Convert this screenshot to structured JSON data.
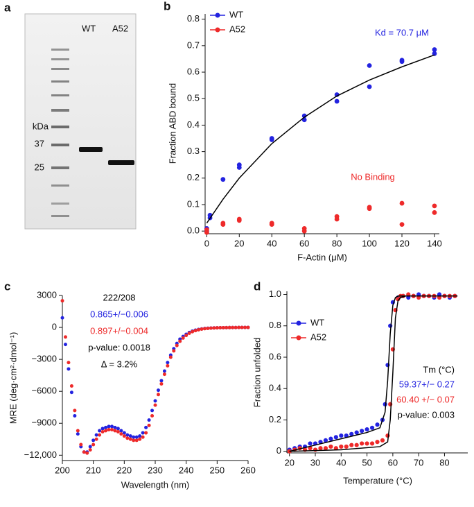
{
  "panel_labels": [
    "a",
    "b",
    "c",
    "d"
  ],
  "gel": {
    "lanes": [
      "WT",
      "A52"
    ],
    "unit": "kDa",
    "markers": [
      "37",
      "25"
    ]
  },
  "chart_data": [
    {
      "type": "scatter",
      "xlabel": "F-Actin (μM)",
      "ylabel": "Fraction ABD bound",
      "xlim": [
        -1,
        143
      ],
      "ylim": [
        -0.01,
        0.82
      ],
      "xticks": [
        0,
        20,
        40,
        60,
        80,
        100,
        120,
        140
      ],
      "yticks": [
        {
          "value": 0,
          "label": "0.0"
        },
        0.1,
        0.2,
        0.3,
        0.4,
        0.5,
        0.6,
        0.7,
        0.8
      ],
      "legend": "upper left",
      "series": [
        {
          "name": "WT",
          "color": "#2323e0",
          "x": [
            0,
            0,
            2,
            2,
            10,
            20,
            20,
            40,
            40,
            60,
            60,
            80,
            80,
            100,
            100,
            120,
            120,
            140,
            140
          ],
          "values": [
            0.0,
            0.01,
            0.05,
            0.06,
            0.195,
            0.24,
            0.25,
            0.345,
            0.35,
            0.42,
            0.435,
            0.49,
            0.515,
            0.545,
            0.625,
            0.64,
            0.645,
            0.67,
            0.685
          ]
        },
        {
          "name": "A52",
          "color": "#ee2a2a",
          "x": [
            0,
            0,
            10,
            10,
            20,
            20,
            40,
            40,
            60,
            60,
            80,
            80,
            100,
            100,
            120,
            120,
            140,
            140
          ],
          "values": [
            0.005,
            -0.005,
            0.03,
            0.025,
            0.045,
            0.04,
            0.03,
            0.025,
            0.01,
            0.0,
            0.055,
            0.045,
            0.085,
            0.09,
            0.105,
            0.025,
            0.095,
            0.07
          ]
        },
        {
          "color": "#000000",
          "fit": true,
          "x": [
            0,
            10,
            20,
            40,
            60,
            80,
            100,
            120,
            140
          ],
          "values": [
            0.03,
            0.12,
            0.2,
            0.33,
            0.43,
            0.51,
            0.57,
            0.62,
            0.665
          ]
        }
      ],
      "annotations": [
        {
          "text": "Kd = 70.7 μM",
          "color": "#2323e0"
        },
        {
          "text": "No Binding",
          "color": "#ee2a2a"
        }
      ]
    },
    {
      "type": "scatter",
      "xlabel": "Wavelength (nm)",
      "ylabel": "MRE (deg·cm²·dmol⁻¹)",
      "xlim": [
        200,
        260
      ],
      "ylim": [
        -12500,
        3000
      ],
      "xticks": [
        200,
        210,
        220,
        230,
        240,
        250,
        260
      ],
      "yticks": [
        3000,
        0,
        {
          "value": -3000,
          "label": "−3000"
        },
        {
          "value": -6000,
          "label": "−6000"
        },
        {
          "value": -9000,
          "label": "−9000"
        },
        {
          "value": -12000,
          "label": "−12,000"
        }
      ],
      "series": [
        {
          "color": "#2323e0",
          "x": [
            200,
            201,
            202,
            203,
            204,
            205,
            206,
            207,
            208,
            209,
            210,
            211,
            212,
            213,
            214,
            215,
            216,
            217,
            218,
            219,
            220,
            221,
            222,
            223,
            224,
            225,
            226,
            227,
            228,
            229,
            230,
            231,
            232,
            233,
            234,
            235,
            236,
            237,
            238,
            239,
            240,
            241,
            242,
            243,
            244,
            245,
            246,
            247,
            248,
            249,
            250,
            251,
            252,
            253,
            254,
            255,
            256,
            257,
            258,
            259,
            260
          ],
          "values": [
            900,
            -1600,
            -3900,
            -6100,
            -8300,
            -10000,
            -11200,
            -11700,
            -11700,
            -11200,
            -10600,
            -10100,
            -9700,
            -9500,
            -9400,
            -9300,
            -9300,
            -9400,
            -9500,
            -9700,
            -9900,
            -10100,
            -10200,
            -10300,
            -10300,
            -10200,
            -9900,
            -9400,
            -8700,
            -7800,
            -6900,
            -5900,
            -5000,
            -4100,
            -3300,
            -2600,
            -2000,
            -1500,
            -1100,
            -850,
            -650,
            -480,
            -350,
            -260,
            -190,
            -140,
            -100,
            -80,
            -60,
            -45,
            -35,
            -30,
            -25,
            -20,
            -15,
            -10,
            -10,
            -5,
            -5,
            0,
            0
          ]
        },
        {
          "color": "#ee2a2a",
          "x": [
            200,
            201,
            202,
            203,
            204,
            205,
            206,
            207,
            208,
            209,
            210,
            211,
            212,
            213,
            214,
            215,
            216,
            217,
            218,
            219,
            220,
            221,
            222,
            223,
            224,
            225,
            226,
            227,
            228,
            229,
            230,
            231,
            232,
            233,
            234,
            235,
            236,
            237,
            238,
            239,
            240,
            241,
            242,
            243,
            244,
            245,
            246,
            247,
            248,
            249,
            250,
            251,
            252,
            253,
            254,
            255,
            256,
            257,
            258,
            259,
            260
          ],
          "values": [
            2500,
            -900,
            -3300,
            -5500,
            -7800,
            -9700,
            -11000,
            -11700,
            -11800,
            -11500,
            -11000,
            -10500,
            -10100,
            -9800,
            -9700,
            -9600,
            -9600,
            -9700,
            -9800,
            -10000,
            -10200,
            -10400,
            -10500,
            -10600,
            -10600,
            -10500,
            -10300,
            -9900,
            -9200,
            -8300,
            -7300,
            -6300,
            -5300,
            -4400,
            -3600,
            -2800,
            -2200,
            -1700,
            -1300,
            -1000,
            -750,
            -550,
            -400,
            -300,
            -220,
            -160,
            -120,
            -90,
            -70,
            -50,
            -40,
            -30,
            -25,
            -20,
            -15,
            -10,
            -10,
            -5,
            -5,
            0,
            0
          ]
        }
      ],
      "annotations": [
        {
          "text": "222/208",
          "color": "#000000"
        },
        {
          "text": "0.865+/−0.006",
          "color": "#2323e0"
        },
        {
          "text": "0.897+/−0.004",
          "color": "#ee2a2a"
        },
        {
          "text": "p-value: 0.0018",
          "color": "#000000"
        },
        {
          "text": "Δ = 3.2%",
          "color": "#000000"
        }
      ]
    },
    {
      "type": "scatter",
      "xlabel": "Temperature (°C)",
      "ylabel": "Fraction unfolded",
      "xlim": [
        19,
        89
      ],
      "ylim": [
        -0.01,
        1.02
      ],
      "xticks": [
        20,
        30,
        40,
        50,
        60,
        70,
        80
      ],
      "yticks": [
        0,
        0.2,
        0.4,
        0.6,
        0.8,
        {
          "value": 1,
          "label": "1.0"
        }
      ],
      "legend": "upper left",
      "series": [
        {
          "name": "WT",
          "color": "#2323e0",
          "x": [
            20,
            22,
            24,
            26,
            28,
            30,
            32,
            34,
            36,
            38,
            40,
            42,
            44,
            46,
            48,
            50,
            52,
            54,
            56,
            57,
            58,
            59,
            60,
            62,
            64,
            66,
            68,
            70,
            72,
            74,
            76,
            78,
            80,
            82,
            84
          ],
          "values": [
            0.01,
            0.02,
            0.03,
            0.03,
            0.05,
            0.05,
            0.06,
            0.07,
            0.08,
            0.09,
            0.1,
            0.1,
            0.11,
            0.12,
            0.13,
            0.14,
            0.15,
            0.17,
            0.2,
            0.3,
            0.55,
            0.8,
            0.95,
            0.98,
            0.99,
            0.98,
            0.99,
            1.0,
            0.99,
            0.99,
            0.98,
            1.0,
            0.99,
            0.98,
            0.99
          ]
        },
        {
          "name": "A52",
          "color": "#ee2a2a",
          "x": [
            20,
            22,
            24,
            26,
            28,
            30,
            32,
            34,
            36,
            38,
            40,
            42,
            44,
            46,
            48,
            50,
            52,
            54,
            56,
            58,
            59,
            60,
            61,
            62,
            63,
            64,
            66,
            68,
            70,
            72,
            74,
            76,
            78,
            80,
            82,
            84
          ],
          "values": [
            0.0,
            0.01,
            0.02,
            0.01,
            0.02,
            0.01,
            0.02,
            0.02,
            0.03,
            0.02,
            0.03,
            0.03,
            0.04,
            0.04,
            0.05,
            0.05,
            0.05,
            0.06,
            0.07,
            0.1,
            0.3,
            0.65,
            0.9,
            0.97,
            0.99,
            0.99,
            1.0,
            0.99,
            0.98,
            0.99,
            0.99,
            0.99,
            0.98,
            0.99,
            0.99,
            0.99
          ]
        },
        {
          "color": "#000000",
          "fit": true,
          "x": [
            20,
            30,
            40,
            50,
            55,
            57,
            58,
            59,
            60,
            61,
            62,
            65,
            70,
            80,
            85
          ],
          "values": [
            0.0,
            0.04,
            0.08,
            0.12,
            0.15,
            0.25,
            0.45,
            0.75,
            0.93,
            0.98,
            0.99,
            0.99,
            0.99,
            0.99,
            0.99
          ]
        },
        {
          "color": "#000000",
          "fit": true,
          "x": [
            20,
            40,
            55,
            58,
            59,
            60,
            61,
            62,
            63,
            65,
            85
          ],
          "values": [
            0.0,
            0.01,
            0.03,
            0.06,
            0.2,
            0.5,
            0.85,
            0.96,
            0.98,
            0.99,
            0.99
          ]
        }
      ],
      "annotations": [
        {
          "text": "Tm (°C)",
          "color": "#000000"
        },
        {
          "text": "59.37+/− 0.27",
          "color": "#2323e0"
        },
        {
          "text": "60.40 +/− 0.07",
          "color": "#ee2a2a"
        },
        {
          "text": "p-value: 0.003",
          "color": "#000000"
        }
      ]
    }
  ]
}
